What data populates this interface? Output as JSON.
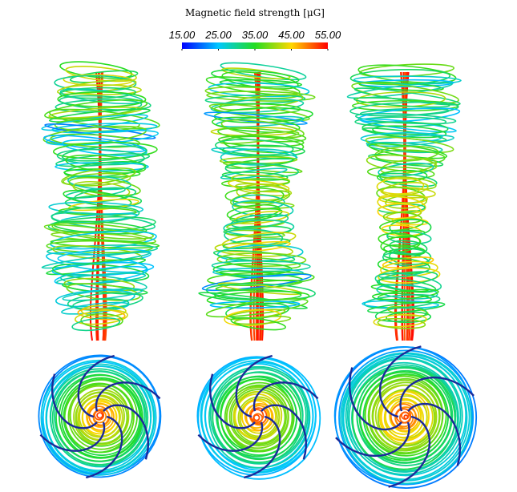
{
  "colorbar": {
    "title": "Magnetic field strength [μG]",
    "range": [
      15,
      55
    ],
    "ticks": [
      {
        "value": 15,
        "label": "15.00"
      },
      {
        "value": 25,
        "label": "25.00"
      },
      {
        "value": 35,
        "label": "35.00"
      },
      {
        "value": 45,
        "label": "45.00"
      },
      {
        "value": 55,
        "label": "55.00"
      }
    ]
  }
}
